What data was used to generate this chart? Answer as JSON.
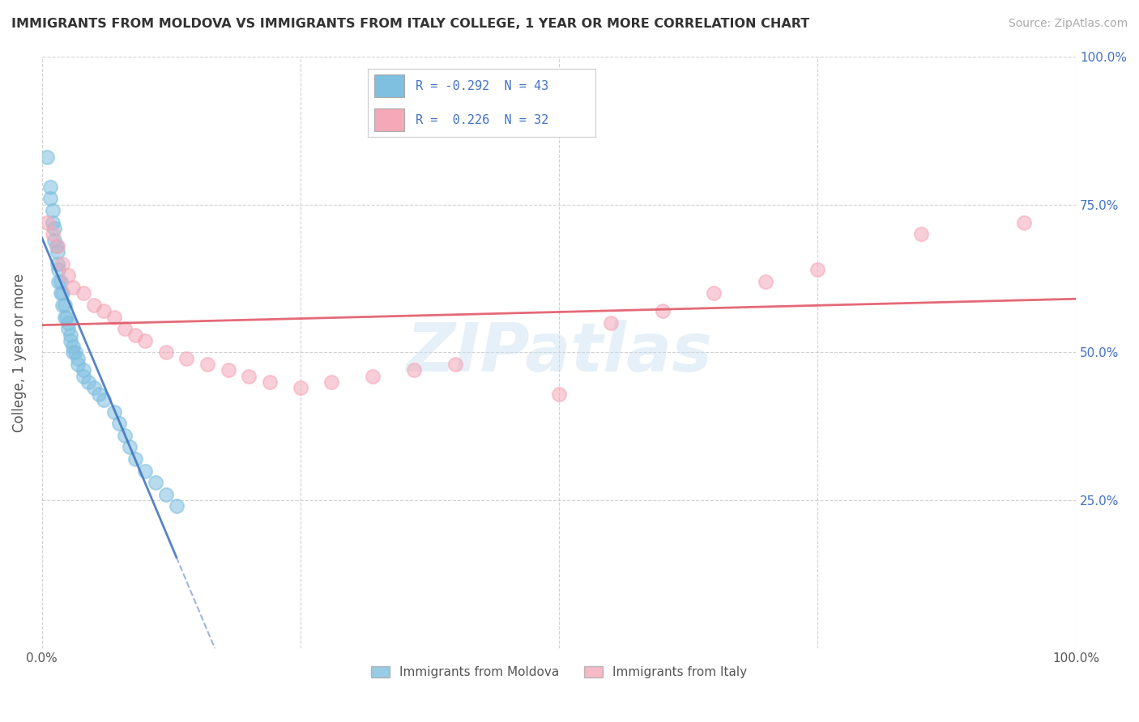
{
  "title": "IMMIGRANTS FROM MOLDOVA VS IMMIGRANTS FROM ITALY COLLEGE, 1 YEAR OR MORE CORRELATION CHART",
  "source": "Source: ZipAtlas.com",
  "ylabel": "College, 1 year or more",
  "xlabel": "",
  "xlim": [
    0.0,
    1.0
  ],
  "ylim": [
    0.0,
    1.0
  ],
  "xticks": [
    0.0,
    0.25,
    0.5,
    0.75,
    1.0
  ],
  "yticks": [
    0.0,
    0.25,
    0.5,
    0.75,
    1.0
  ],
  "xticklabels": [
    "0.0%",
    "",
    "",
    "",
    "100.0%"
  ],
  "right_yticklabels": [
    "",
    "25.0%",
    "50.0%",
    "75.0%",
    "100.0%"
  ],
  "legend_label1": "Immigrants from Moldova",
  "legend_label2": "Immigrants from Italy",
  "R1": -0.292,
  "N1": 43,
  "R2": 0.226,
  "N2": 32,
  "color1": "#7fbfdf",
  "color2": "#f4a8b8",
  "trendline1_color": "#3a6fbe",
  "trendline2_color": "#e05060",
  "trendline1_solid_end": 0.13,
  "watermark_text": "ZIPatlas",
  "moldova_x": [
    0.005,
    0.008,
    0.008,
    0.01,
    0.01,
    0.012,
    0.012,
    0.014,
    0.015,
    0.015,
    0.016,
    0.016,
    0.018,
    0.018,
    0.02,
    0.02,
    0.022,
    0.022,
    0.024,
    0.025,
    0.025,
    0.028,
    0.028,
    0.03,
    0.03,
    0.032,
    0.035,
    0.035,
    0.04,
    0.04,
    0.045,
    0.05,
    0.055,
    0.06,
    0.07,
    0.075,
    0.08,
    0.085,
    0.09,
    0.1,
    0.11,
    0.12,
    0.13
  ],
  "moldova_y": [
    0.83,
    0.78,
    0.76,
    0.74,
    0.72,
    0.71,
    0.69,
    0.68,
    0.67,
    0.65,
    0.64,
    0.62,
    0.62,
    0.6,
    0.6,
    0.58,
    0.58,
    0.56,
    0.56,
    0.55,
    0.54,
    0.53,
    0.52,
    0.51,
    0.5,
    0.5,
    0.49,
    0.48,
    0.47,
    0.46,
    0.45,
    0.44,
    0.43,
    0.42,
    0.4,
    0.38,
    0.36,
    0.34,
    0.32,
    0.3,
    0.28,
    0.26,
    0.24
  ],
  "italy_x": [
    0.005,
    0.01,
    0.015,
    0.02,
    0.025,
    0.03,
    0.04,
    0.05,
    0.06,
    0.07,
    0.08,
    0.09,
    0.1,
    0.12,
    0.14,
    0.16,
    0.18,
    0.2,
    0.22,
    0.25,
    0.28,
    0.32,
    0.36,
    0.4,
    0.5,
    0.55,
    0.6,
    0.65,
    0.7,
    0.75,
    0.85,
    0.95
  ],
  "italy_y": [
    0.72,
    0.7,
    0.68,
    0.65,
    0.63,
    0.61,
    0.6,
    0.58,
    0.57,
    0.56,
    0.54,
    0.53,
    0.52,
    0.5,
    0.49,
    0.48,
    0.47,
    0.46,
    0.45,
    0.44,
    0.45,
    0.46,
    0.47,
    0.48,
    0.43,
    0.55,
    0.57,
    0.6,
    0.62,
    0.64,
    0.7,
    0.72
  ]
}
